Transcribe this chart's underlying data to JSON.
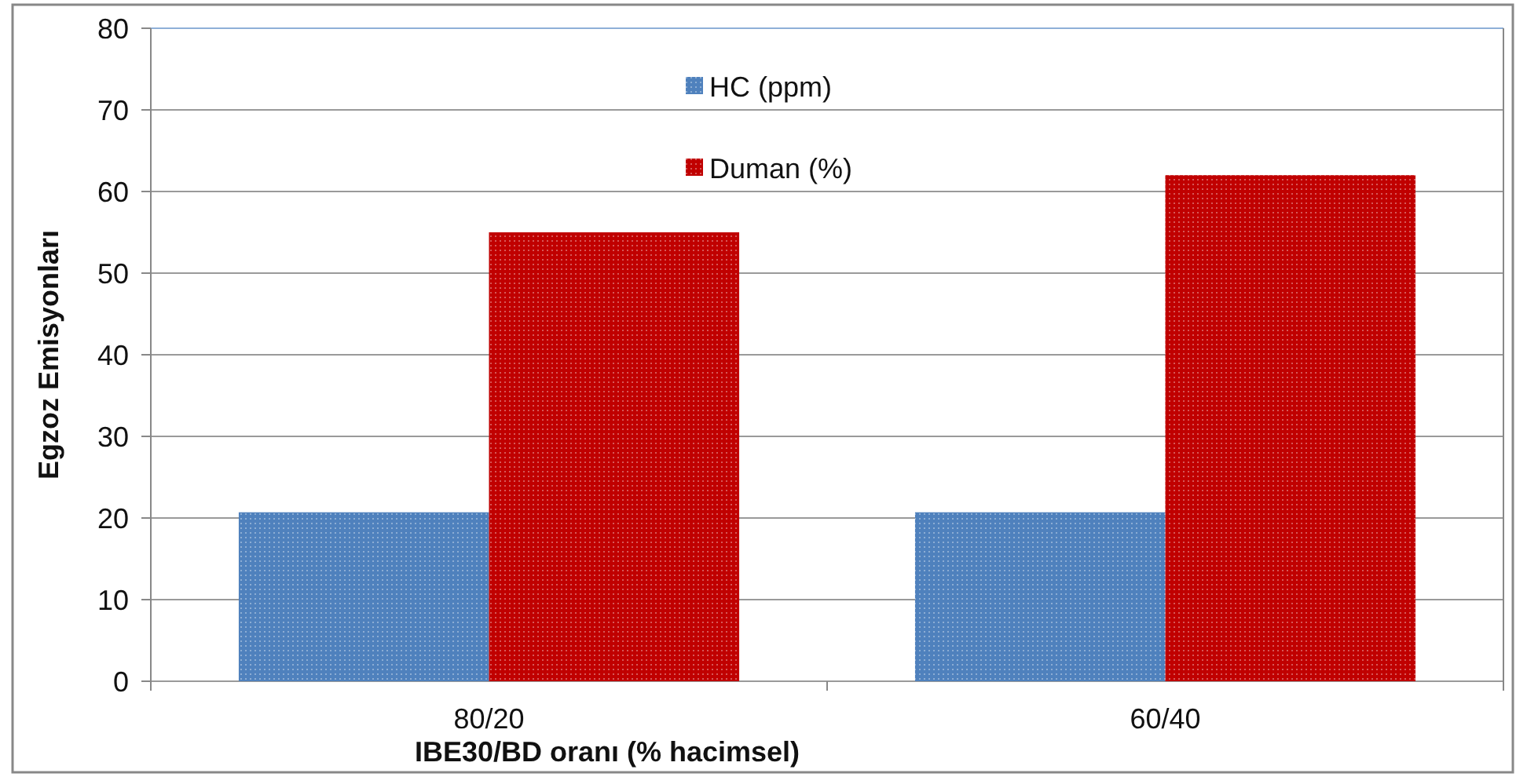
{
  "chart_data": {
    "type": "bar",
    "xlabel": "IBE30/BD oranı (% hacimsel)",
    "ylabel": "Egzoz Emisyonları",
    "categories": [
      "80/20",
      "60/40"
    ],
    "series": [
      {
        "name": "HC (ppm)",
        "color": "#4f81bd",
        "values": [
          20.7,
          20.7
        ]
      },
      {
        "name": "Duman (%)",
        "color": "#c00000",
        "values": [
          55,
          62
        ]
      }
    ],
    "ylim": [
      0,
      80
    ],
    "yticks": [
      0,
      10,
      20,
      30,
      40,
      50,
      60,
      70,
      80
    ],
    "grid": "y",
    "legend": "top"
  }
}
